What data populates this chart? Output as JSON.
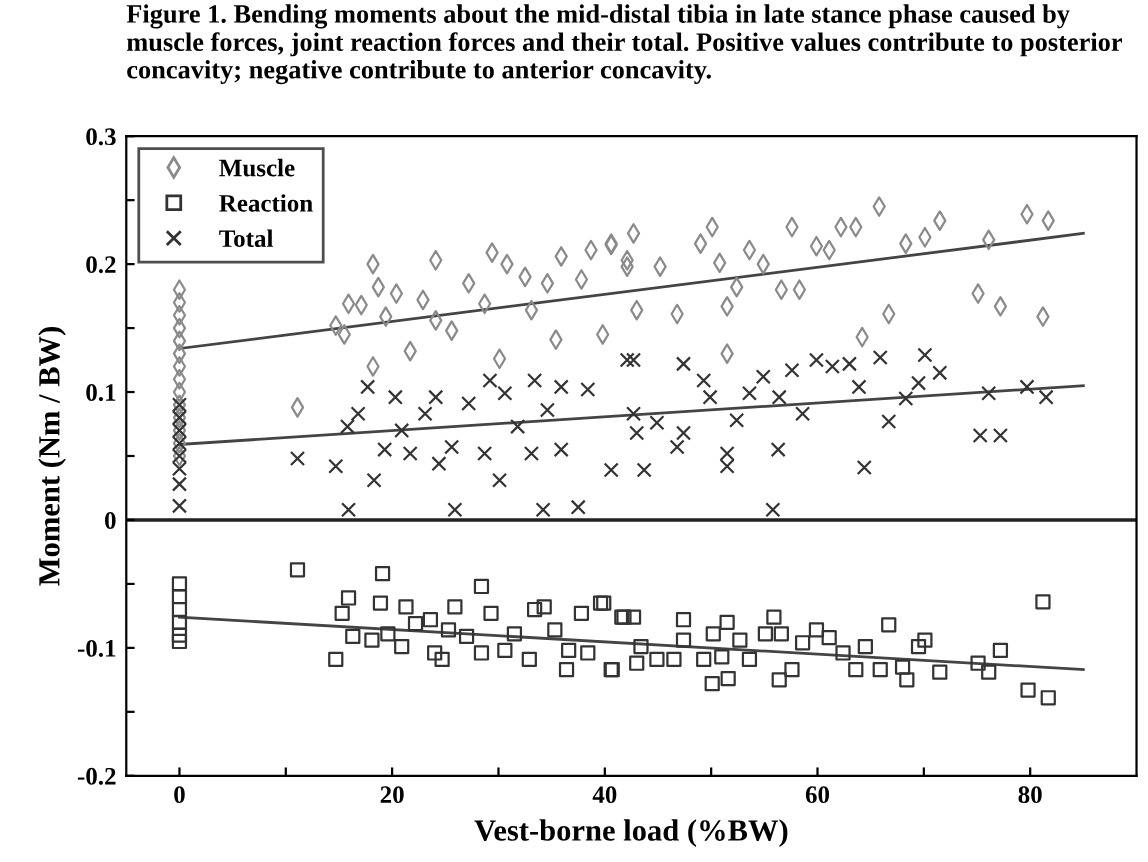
{
  "chart_data": {
    "type": "scatter",
    "title": "Figure 1. Bending moments about the mid-distal tibia in late stance phase caused by muscle forces, joint reaction forces and their total. Positive values contribute to posterior concavity; negative contribute to anterior concavity.",
    "xlabel": "Vest-borne load (%BW)",
    "ylabel": "Moment (Nm / BW)",
    "xlim": [
      -5,
      90
    ],
    "xticks": [
      0,
      {
        "value": 10,
        "label": null
      },
      20,
      {
        "value": 30,
        "label": null
      },
      40,
      {
        "value": 50,
        "label": null
      },
      60,
      {
        "value": 70,
        "label": null
      },
      80
    ],
    "ylim": [
      -0.2,
      0.3
    ],
    "yticks": [
      -0.2,
      {
        "value": -0.15,
        "label": null
      },
      -0.1,
      {
        "value": -0.05,
        "label": null
      },
      0,
      {
        "value": 0.05,
        "label": null
      },
      0.1,
      {
        "value": 0.15,
        "label": null
      },
      0.2,
      {
        "value": 0.25,
        "label": null
      },
      0.3
    ],
    "grid": false,
    "legend": "top left",
    "ref_lines": [
      {
        "axis": "y",
        "value": 0,
        "color": "#222222"
      }
    ],
    "series": [
      {
        "name": "Muscle",
        "color": "#8a8a8a",
        "marker": "diamond",
        "x": [
          0,
          0,
          0,
          0,
          0,
          0,
          0,
          0,
          0,
          0,
          0,
          0,
          0,
          0,
          11.1,
          14.7,
          15.5,
          15.9,
          17.1,
          18.2,
          18.7,
          18.2,
          19.4,
          20.4,
          21.7,
          22.9,
          24.1,
          24.1,
          25.6,
          27.2,
          28.7,
          29.4,
          30.1,
          30.8,
          32.5,
          33.1,
          34.6,
          35.4,
          35.9,
          37.8,
          38.7,
          39.8,
          40.6,
          42.1,
          40.6,
          42.7,
          42.1,
          43.0,
          45.2,
          46.8,
          49.0,
          50.1,
          50.8,
          51.5,
          51.5,
          52.4,
          53.6,
          54.9,
          56.6,
          57.6,
          58.3,
          59.9,
          61.1,
          62.2,
          63.6,
          64.2,
          65.8,
          66.7,
          68.3,
          70.1,
          71.5,
          75.1,
          76.1,
          77.2,
          79.7,
          81.7,
          81.2
        ],
        "values": [
          0.18,
          0.17,
          0.16,
          0.15,
          0.14,
          0.13,
          0.12,
          0.11,
          0.1,
          0.09,
          0.08,
          0.07,
          0.06,
          0.05,
          0.088,
          0.152,
          0.145,
          0.169,
          0.168,
          0.2,
          0.182,
          0.12,
          0.159,
          0.177,
          0.132,
          0.172,
          0.203,
          0.156,
          0.148,
          0.185,
          0.169,
          0.209,
          0.126,
          0.2,
          0.19,
          0.164,
          0.185,
          0.141,
          0.206,
          0.188,
          0.211,
          0.145,
          0.215,
          0.203,
          0.216,
          0.224,
          0.198,
          0.164,
          0.198,
          0.161,
          0.216,
          0.229,
          0.201,
          0.167,
          0.13,
          0.182,
          0.211,
          0.2,
          0.18,
          0.229,
          0.18,
          0.214,
          0.211,
          0.229,
          0.229,
          0.143,
          0.245,
          0.161,
          0.216,
          0.221,
          0.234,
          0.177,
          0.219,
          0.167,
          0.239,
          0.234,
          0.159
        ]
      },
      {
        "name": "Reaction",
        "color": "#333333",
        "marker": "square",
        "x": [
          0,
          0,
          0,
          0,
          0,
          0,
          11.1,
          14.7,
          15.3,
          15.9,
          16.3,
          18.1,
          19.1,
          18.9,
          19.6,
          20.9,
          21.3,
          22.2,
          23.6,
          24.0,
          24.7,
          25.3,
          25.9,
          27.0,
          28.4,
          28.4,
          29.3,
          30.6,
          31.5,
          32.9,
          33.4,
          34.3,
          35.3,
          36.4,
          36.6,
          37.8,
          38.4,
          39.6,
          40.7,
          41.6,
          39.9,
          40.6,
          41.8,
          42.7,
          43.0,
          43.4,
          44.9,
          46.5,
          47.4,
          47.4,
          49.3,
          50.1,
          50.2,
          51.0,
          51.5,
          51.6,
          52.7,
          53.6,
          55.1,
          55.9,
          56.6,
          56.4,
          57.6,
          58.6,
          59.9,
          61.1,
          62.4,
          63.6,
          64.5,
          65.9,
          66.7,
          68.0,
          68.4,
          69.5,
          70.1,
          71.5,
          75.1,
          76.1,
          77.2,
          79.8,
          81.2,
          81.7
        ],
        "values": [
          -0.05,
          -0.06,
          -0.07,
          -0.08,
          -0.09,
          -0.095,
          -0.039,
          -0.109,
          -0.073,
          -0.061,
          -0.091,
          -0.094,
          -0.042,
          -0.065,
          -0.089,
          -0.099,
          -0.068,
          -0.081,
          -0.078,
          -0.104,
          -0.109,
          -0.086,
          -0.068,
          -0.091,
          -0.052,
          -0.104,
          -0.073,
          -0.102,
          -0.089,
          -0.109,
          -0.07,
          -0.068,
          -0.086,
          -0.117,
          -0.102,
          -0.073,
          -0.104,
          -0.065,
          -0.117,
          -0.076,
          -0.065,
          -0.117,
          -0.076,
          -0.076,
          -0.112,
          -0.099,
          -0.109,
          -0.109,
          -0.078,
          -0.094,
          -0.109,
          -0.128,
          -0.089,
          -0.107,
          -0.08,
          -0.124,
          -0.094,
          -0.109,
          -0.089,
          -0.076,
          -0.089,
          -0.125,
          -0.117,
          -0.096,
          -0.086,
          -0.092,
          -0.104,
          -0.117,
          -0.099,
          -0.117,
          -0.082,
          -0.115,
          -0.125,
          -0.099,
          -0.094,
          -0.119,
          -0.112,
          -0.119,
          -0.102,
          -0.133,
          -0.064,
          -0.139
        ]
      },
      {
        "name": "Total",
        "color": "#333333",
        "marker": "cross",
        "x": [
          0,
          0,
          0,
          0,
          0,
          0,
          0,
          0,
          11.1,
          14.7,
          15.8,
          15.9,
          16.8,
          17.7,
          18.3,
          19.3,
          20.3,
          20.9,
          21.7,
          23.1,
          24.1,
          24.4,
          25.6,
          25.9,
          27.2,
          28.7,
          29.2,
          30.1,
          30.6,
          31.8,
          33.1,
          33.4,
          34.2,
          34.6,
          35.9,
          35.9,
          37.5,
          38.4,
          40.6,
          42.1,
          42.7,
          42.7,
          43.7,
          43.0,
          44.9,
          46.8,
          47.4,
          47.4,
          49.3,
          49.9,
          51.5,
          51.5,
          52.4,
          53.6,
          54.9,
          55.8,
          56.3,
          56.4,
          57.6,
          58.6,
          59.9,
          61.4,
          63.0,
          63.9,
          64.4,
          65.9,
          66.7,
          68.3,
          69.5,
          70.1,
          71.5,
          75.3,
          76.1,
          77.2,
          79.7,
          81.5
        ],
        "values": [
          0.09,
          0.08,
          0.07,
          0.06,
          0.05,
          0.04,
          0.028,
          0.011,
          0.048,
          0.042,
          0.073,
          0.008,
          0.083,
          0.104,
          0.031,
          0.055,
          0.096,
          0.07,
          0.052,
          0.083,
          0.096,
          0.044,
          0.057,
          0.008,
          0.091,
          0.052,
          0.109,
          0.031,
          0.099,
          0.073,
          0.052,
          0.109,
          0.008,
          0.086,
          0.104,
          0.055,
          0.01,
          0.102,
          0.039,
          0.125,
          0.083,
          0.125,
          0.039,
          0.068,
          0.076,
          0.057,
          0.122,
          0.068,
          0.109,
          0.096,
          0.052,
          0.042,
          0.078,
          0.099,
          0.112,
          0.008,
          0.055,
          0.096,
          0.117,
          0.083,
          0.125,
          0.12,
          0.122,
          0.104,
          0.041,
          0.127,
          0.077,
          0.095,
          0.107,
          0.129,
          0.115,
          0.066,
          0.099,
          0.066,
          0.104,
          0.096
        ]
      },
      {
        "type": "line",
        "color": "#444444",
        "marker": "none",
        "x": [
          0,
          85
        ],
        "values": [
          0.134,
          0.224
        ]
      },
      {
        "type": "line",
        "color": "#444444",
        "marker": "none",
        "x": [
          0,
          85
        ],
        "values": [
          -0.076,
          -0.117
        ]
      },
      {
        "type": "line",
        "color": "#444444",
        "marker": "none",
        "x": [
          0,
          85
        ],
        "values": [
          0.059,
          0.105
        ]
      }
    ]
  }
}
